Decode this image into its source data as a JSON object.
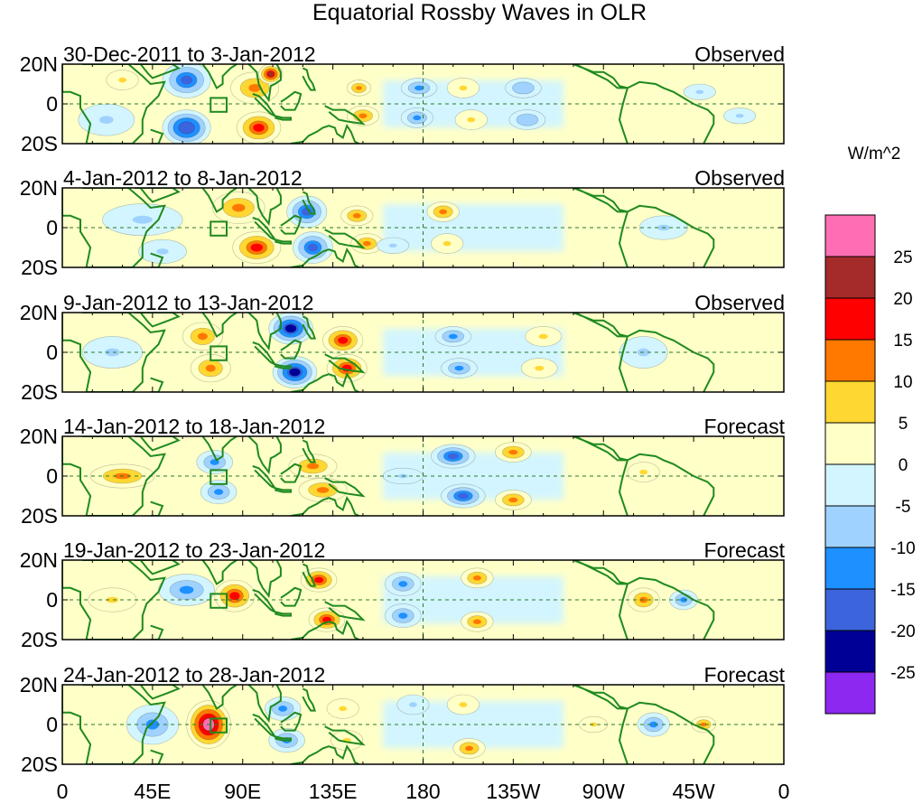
{
  "chart_data": {
    "type": "heatmap",
    "title": "Equatorial Rossby Waves in OLR",
    "units": "W/m^2",
    "x_ticks": [
      "0",
      "45E",
      "90E",
      "135E",
      "180",
      "135W",
      "90W",
      "45W",
      "0"
    ],
    "x_tick_lon": [
      0,
      45,
      90,
      135,
      180,
      225,
      270,
      315,
      360
    ],
    "y_ticks": [
      "20N",
      "0",
      "20S"
    ],
    "y_tick_lat": [
      20,
      0,
      -20
    ],
    "xlim": [
      0,
      360
    ],
    "ylim": [
      -20,
      20
    ],
    "colorbar": {
      "labels": [
        "25",
        "20",
        "15",
        "10",
        "5",
        "0",
        "-5",
        "-10",
        "-15",
        "-20",
        "-25"
      ],
      "levels": [
        25,
        20,
        15,
        10,
        5,
        0,
        -5,
        -10,
        -15,
        -20,
        -25
      ],
      "colors": [
        "#ff6eb4",
        "#a52a2a",
        "#ff0000",
        "#ff7800",
        "#ffd732",
        "#ffffc8",
        "#d2f5ff",
        "#a0d2ff",
        "#1e90ff",
        "#3c64dc",
        "#000096",
        "#8c28f0"
      ]
    },
    "panels": [
      {
        "period": "30-Dec-2011 to 3-Jan-2012",
        "status": "Observed",
        "anomalies": [
          {
            "lon": 62,
            "lat": 12,
            "value": -18,
            "rx": 12,
            "ry": 9
          },
          {
            "lon": 62,
            "lat": -12,
            "value": -20,
            "rx": 12,
            "ry": 9
          },
          {
            "lon": 96,
            "lat": 8,
            "value": 14,
            "rx": 12,
            "ry": 8
          },
          {
            "lon": 98,
            "lat": -12,
            "value": 16,
            "rx": 11,
            "ry": 8
          },
          {
            "lon": 104,
            "lat": 15,
            "value": 20,
            "rx": 6,
            "ry": 5
          },
          {
            "lon": 148,
            "lat": 8,
            "value": 12,
            "rx": 6,
            "ry": 4
          },
          {
            "lon": 150,
            "lat": -6,
            "value": 12,
            "rx": 8,
            "ry": 5
          },
          {
            "lon": 178,
            "lat": 8,
            "value": -12,
            "rx": 9,
            "ry": 5
          },
          {
            "lon": 177,
            "lat": -7,
            "value": -12,
            "rx": 8,
            "ry": 5
          },
          {
            "lon": 200,
            "lat": 8,
            "value": 8,
            "rx": 8,
            "ry": 5
          },
          {
            "lon": 204,
            "lat": -8,
            "value": 9,
            "rx": 8,
            "ry": 5
          },
          {
            "lon": 230,
            "lat": 8,
            "value": -10,
            "rx": 9,
            "ry": 5
          },
          {
            "lon": 232,
            "lat": -8,
            "value": -10,
            "rx": 9,
            "ry": 5
          },
          {
            "lon": 318,
            "lat": 6,
            "value": -9,
            "rx": 8,
            "ry": 4
          },
          {
            "lon": 338,
            "lat": -6,
            "value": -9,
            "rx": 8,
            "ry": 4
          },
          {
            "lon": 22,
            "lat": -8,
            "value": -8,
            "rx": 14,
            "ry": 8
          },
          {
            "lon": 30,
            "lat": 12,
            "value": 6,
            "rx": 8,
            "ry": 5
          }
        ]
      },
      {
        "period": "4-Jan-2012 to 8-Jan-2012",
        "status": "Observed",
        "anomalies": [
          {
            "lon": 88,
            "lat": 10,
            "value": 14,
            "rx": 13,
            "ry": 8
          },
          {
            "lon": 97,
            "lat": -10,
            "value": 18,
            "rx": 12,
            "ry": 8
          },
          {
            "lon": 122,
            "lat": 8,
            "value": -16,
            "rx": 10,
            "ry": 8
          },
          {
            "lon": 125,
            "lat": -10,
            "value": -16,
            "rx": 10,
            "ry": 8
          },
          {
            "lon": 147,
            "lat": 6,
            "value": 11,
            "rx": 8,
            "ry": 5
          },
          {
            "lon": 152,
            "lat": -8,
            "value": 10,
            "rx": 8,
            "ry": 5
          },
          {
            "lon": 190,
            "lat": 8,
            "value": 10,
            "rx": 8,
            "ry": 5
          },
          {
            "lon": 192,
            "lat": -8,
            "value": 9,
            "rx": 8,
            "ry": 5
          },
          {
            "lon": 165,
            "lat": -9,
            "value": -9,
            "rx": 8,
            "ry": 4
          },
          {
            "lon": 40,
            "lat": 4,
            "value": -8,
            "rx": 20,
            "ry": 8
          },
          {
            "lon": 50,
            "lat": -12,
            "value": -9,
            "rx": 12,
            "ry": 6
          },
          {
            "lon": 300,
            "lat": 0,
            "value": -6,
            "rx": 12,
            "ry": 6
          }
        ]
      },
      {
        "period": "9-Jan-2012 to 13-Jan-2012",
        "status": "Observed",
        "anomalies": [
          {
            "lon": 70,
            "lat": 8,
            "value": 12,
            "rx": 10,
            "ry": 7
          },
          {
            "lon": 74,
            "lat": -8,
            "value": 12,
            "rx": 10,
            "ry": 7
          },
          {
            "lon": 114,
            "lat": 12,
            "value": -22,
            "rx": 11,
            "ry": 8
          },
          {
            "lon": 116,
            "lat": -10,
            "value": -22,
            "rx": 11,
            "ry": 8
          },
          {
            "lon": 140,
            "lat": 6,
            "value": 16,
            "rx": 10,
            "ry": 7
          },
          {
            "lon": 142,
            "lat": -8,
            "value": 16,
            "rx": 10,
            "ry": 7
          },
          {
            "lon": 195,
            "lat": 8,
            "value": -12,
            "rx": 9,
            "ry": 5
          },
          {
            "lon": 198,
            "lat": -8,
            "value": -12,
            "rx": 9,
            "ry": 5
          },
          {
            "lon": 240,
            "lat": 8,
            "value": 9,
            "rx": 9,
            "ry": 5
          },
          {
            "lon": 238,
            "lat": -8,
            "value": 9,
            "rx": 9,
            "ry": 5
          },
          {
            "lon": 25,
            "lat": 0,
            "value": -9,
            "rx": 15,
            "ry": 8
          },
          {
            "lon": 290,
            "lat": 0,
            "value": -7,
            "rx": 12,
            "ry": 8
          }
        ]
      },
      {
        "period": "14-Jan-2012 to 18-Jan-2012",
        "status": "Forecast",
        "anomalies": [
          {
            "lon": 30,
            "lat": 0,
            "value": 10,
            "rx": 16,
            "ry": 6
          },
          {
            "lon": 76,
            "lat": 7,
            "value": -12,
            "rx": 9,
            "ry": 6
          },
          {
            "lon": 78,
            "lat": -8,
            "value": -12,
            "rx": 9,
            "ry": 6
          },
          {
            "lon": 125,
            "lat": 5,
            "value": 14,
            "rx": 12,
            "ry": 6
          },
          {
            "lon": 130,
            "lat": -7,
            "value": 14,
            "rx": 12,
            "ry": 6
          },
          {
            "lon": 195,
            "lat": 10,
            "value": -16,
            "rx": 11,
            "ry": 6
          },
          {
            "lon": 200,
            "lat": -10,
            "value": -16,
            "rx": 11,
            "ry": 6
          },
          {
            "lon": 225,
            "lat": 12,
            "value": 14,
            "rx": 9,
            "ry": 5
          },
          {
            "lon": 225,
            "lat": -12,
            "value": 14,
            "rx": 9,
            "ry": 5
          },
          {
            "lon": 290,
            "lat": 2,
            "value": 8,
            "rx": 8,
            "ry": 5
          },
          {
            "lon": 170,
            "lat": 0,
            "value": -7,
            "rx": 10,
            "ry": 4
          }
        ]
      },
      {
        "period": "19-Jan-2012 to 23-Jan-2012",
        "status": "Forecast",
        "anomalies": [
          {
            "lon": 62,
            "lat": 5,
            "value": -14,
            "rx": 14,
            "ry": 8
          },
          {
            "lon": 86,
            "lat": 2,
            "value": 16,
            "rx": 10,
            "ry": 8
          },
          {
            "lon": 128,
            "lat": 10,
            "value": 15,
            "rx": 9,
            "ry": 6
          },
          {
            "lon": 132,
            "lat": -10,
            "value": 15,
            "rx": 9,
            "ry": 6
          },
          {
            "lon": 170,
            "lat": 8,
            "value": -11,
            "rx": 9,
            "ry": 6
          },
          {
            "lon": 170,
            "lat": -8,
            "value": -11,
            "rx": 9,
            "ry": 6
          },
          {
            "lon": 207,
            "lat": 11,
            "value": 13,
            "rx": 8,
            "ry": 5
          },
          {
            "lon": 207,
            "lat": -11,
            "value": 13,
            "rx": 8,
            "ry": 5
          },
          {
            "lon": 290,
            "lat": 0,
            "value": 10,
            "rx": 8,
            "ry": 6
          },
          {
            "lon": 310,
            "lat": 0,
            "value": -12,
            "rx": 7,
            "ry": 5
          },
          {
            "lon": 25,
            "lat": 0,
            "value": 6,
            "rx": 12,
            "ry": 6
          }
        ]
      },
      {
        "period": "24-Jan-2012 to 28-Jan-2012",
        "status": "Forecast",
        "anomalies": [
          {
            "lon": 73,
            "lat": 0,
            "value": 26,
            "rx": 11,
            "ry": 12
          },
          {
            "lon": 45,
            "lat": 0,
            "value": -13,
            "rx": 13,
            "ry": 10
          },
          {
            "lon": 110,
            "lat": 8,
            "value": -12,
            "rx": 9,
            "ry": 6
          },
          {
            "lon": 112,
            "lat": -8,
            "value": -12,
            "rx": 9,
            "ry": 6
          },
          {
            "lon": 140,
            "lat": 8,
            "value": 9,
            "rx": 8,
            "ry": 5
          },
          {
            "lon": 142,
            "lat": -8,
            "value": 9,
            "rx": 8,
            "ry": 5
          },
          {
            "lon": 200,
            "lat": 10,
            "value": 9,
            "rx": 8,
            "ry": 5
          },
          {
            "lon": 203,
            "lat": -12,
            "value": 10,
            "rx": 8,
            "ry": 5
          },
          {
            "lon": 175,
            "lat": 10,
            "value": -9,
            "rx": 8,
            "ry": 5
          },
          {
            "lon": 295,
            "lat": 0,
            "value": -14,
            "rx": 8,
            "ry": 6
          },
          {
            "lon": 320,
            "lat": 0,
            "value": 10,
            "rx": 6,
            "ry": 4
          },
          {
            "lon": 265,
            "lat": 0,
            "value": 6,
            "rx": 7,
            "ry": 4
          }
        ]
      }
    ]
  }
}
